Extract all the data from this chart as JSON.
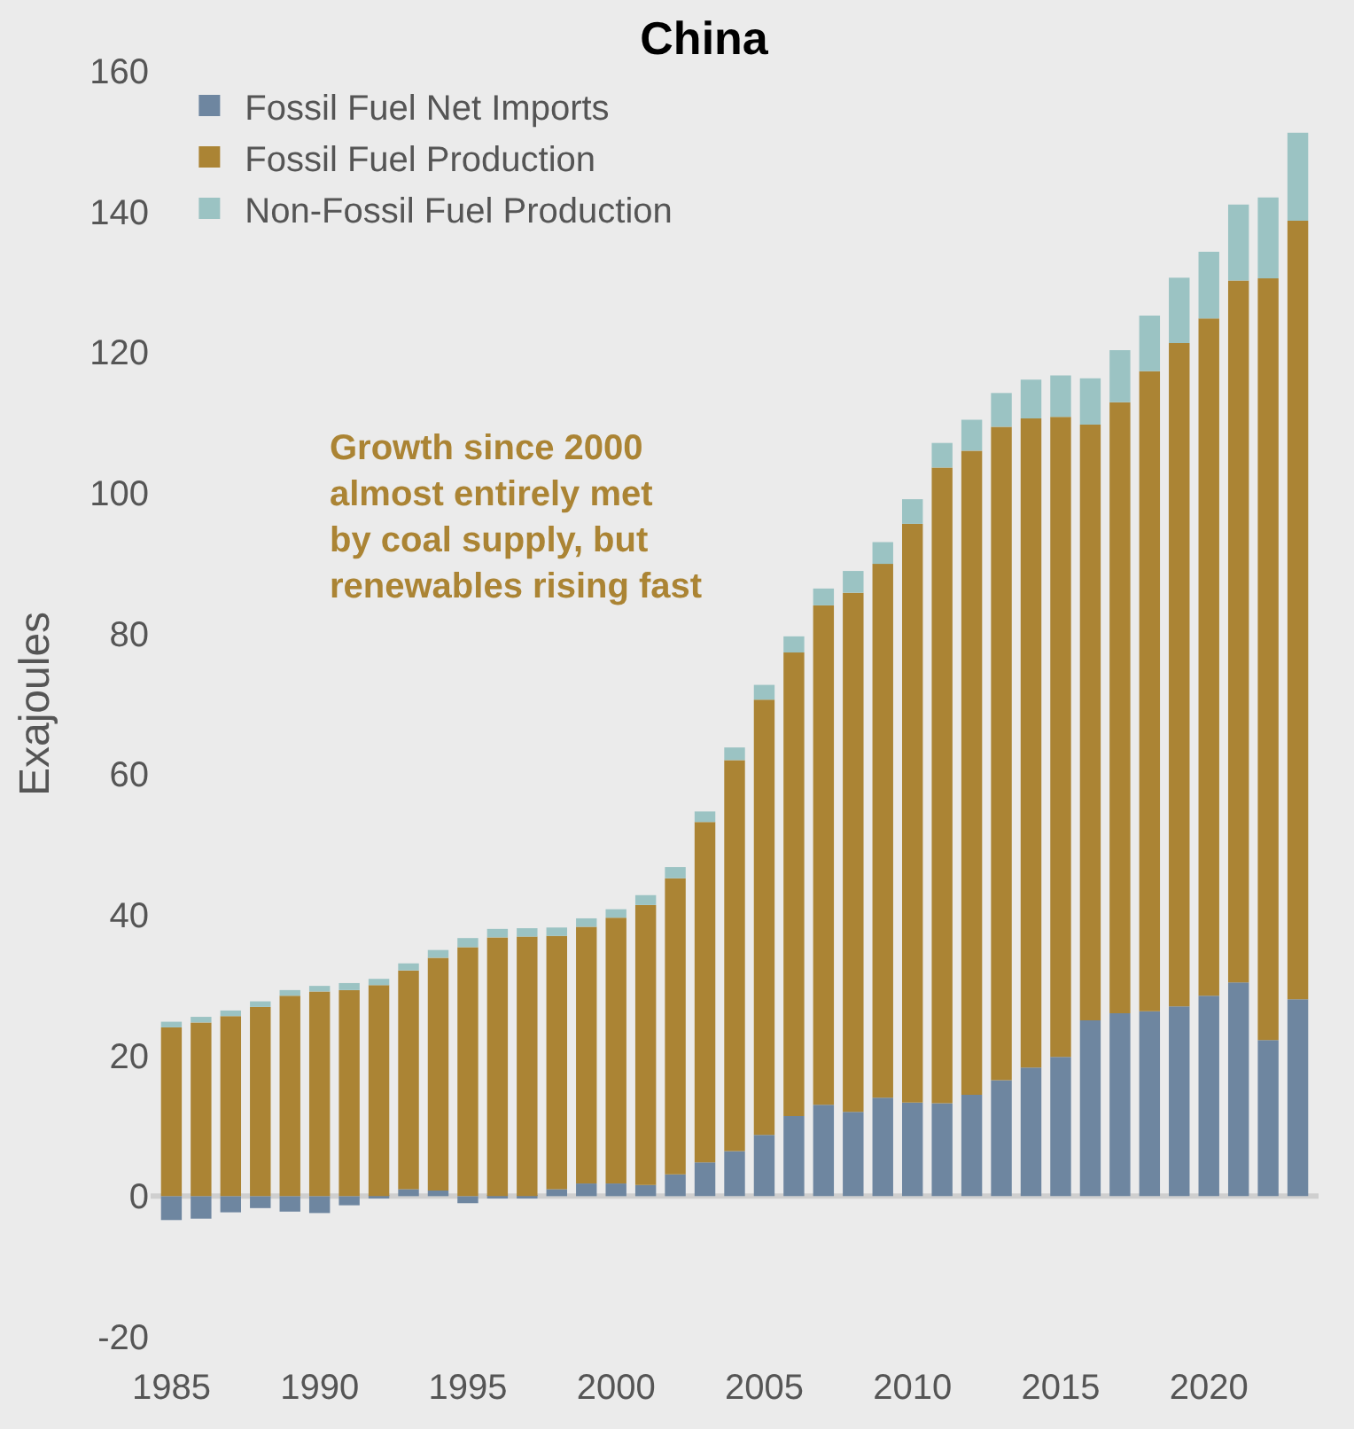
{
  "chart_data": {
    "type": "bar",
    "title": "China",
    "ylabel": "Exajoules",
    "stacked": true,
    "x": [
      1985,
      1986,
      1987,
      1988,
      1989,
      1990,
      1991,
      1992,
      1993,
      1994,
      1995,
      1996,
      1997,
      1998,
      1999,
      2000,
      2001,
      2002,
      2003,
      2004,
      2005,
      2006,
      2007,
      2008,
      2009,
      2010,
      2011,
      2012,
      2013,
      2014,
      2015,
      2016,
      2017,
      2018,
      2019,
      2020,
      2021,
      2022,
      2023
    ],
    "series": [
      {
        "name": "Fossil Fuel Net Imports",
        "color": "#6e86a0",
        "values": [
          -3.4,
          -3.2,
          -2.3,
          -1.7,
          -2.2,
          -2.4,
          -1.3,
          -0.3,
          1.0,
          0.8,
          -1.0,
          -0.2,
          -0.2,
          1.0,
          1.8,
          1.8,
          1.6,
          3.1,
          4.8,
          6.4,
          8.7,
          11.4,
          13.0,
          12.0,
          14.0,
          13.3,
          13.2,
          14.4,
          16.5,
          18.3,
          19.8,
          25.0,
          26.0,
          26.3,
          27.0,
          28.5,
          30.4,
          22.2,
          28.0
        ]
      },
      {
        "name": "Fossil Fuel Production",
        "color": "#ab8434",
        "values": [
          24.0,
          24.7,
          25.6,
          26.9,
          28.5,
          29.1,
          29.3,
          30.0,
          31.1,
          33.1,
          35.4,
          36.8,
          36.9,
          36.0,
          36.5,
          37.8,
          39.8,
          42.1,
          48.4,
          55.6,
          61.9,
          65.9,
          71.0,
          73.8,
          75.9,
          82.3,
          90.4,
          91.6,
          92.9,
          92.3,
          91.0,
          84.7,
          86.9,
          91.0,
          94.3,
          96.3,
          99.8,
          108.3,
          110.7
        ]
      },
      {
        "name": "Non-Fossil Fuel Production",
        "color": "#9bc3c3",
        "values": [
          0.8,
          0.8,
          0.8,
          0.8,
          0.8,
          0.8,
          1.0,
          0.9,
          1.0,
          1.1,
          1.3,
          1.2,
          1.2,
          1.2,
          1.2,
          1.2,
          1.4,
          1.6,
          1.5,
          1.8,
          2.1,
          2.3,
          2.4,
          3.1,
          3.1,
          3.5,
          3.5,
          4.4,
          4.8,
          5.5,
          5.9,
          6.6,
          7.4,
          7.9,
          9.3,
          9.5,
          10.8,
          11.5,
          12.5
        ]
      }
    ],
    "xlim": [
      1984.3,
      2023.7
    ],
    "xticks": [
      1985,
      1990,
      1995,
      2000,
      2005,
      2010,
      2015,
      2020
    ],
    "ylim": [
      -20,
      160
    ],
    "yticks": [
      -20,
      0,
      20,
      40,
      60,
      80,
      100,
      120,
      140,
      160
    ],
    "annotations": [
      "Growth since 2000\nalmost entirely met\nby coal supply, but\nrenewables rising fast"
    ],
    "ref_lines": [
      {
        "axis": "y",
        "value": 0,
        "color": "#cfcfcf"
      }
    ],
    "grid": false,
    "legend": "top left"
  }
}
